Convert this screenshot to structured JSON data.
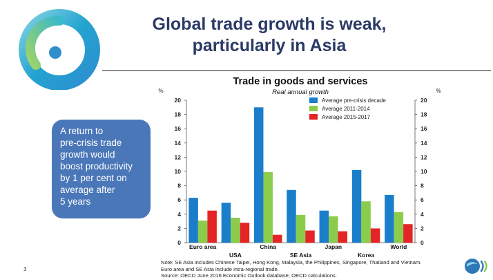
{
  "slide": {
    "title_line1": "Global trade growth is weak,",
    "title_line2": "particularly in Asia",
    "callout": [
      "A return to",
      "pre-crisis trade",
      "growth would",
      "boost productivity",
      "by 1 per cent on",
      "average after",
      "5 years"
    ],
    "note": [
      "Note: SE Asia includes Chinese Taipei, Hong Kong, Malaysia, the Philippines, Singapore, Thailand and Vietnam.",
      "Euro area and SE Asia include intra-regional trade.",
      "Source: OECD June 2016 Economic Outlook database; OECD calculations."
    ],
    "page_number": "3",
    "colors": {
      "title": "#2b3a66",
      "callout_bg": "#4a77b8"
    },
    "icons": {
      "logo": "swirl-logo-icon",
      "oecd": "oecd-logo-icon"
    }
  },
  "chart_data": {
    "type": "bar",
    "title": "Trade in goods and services",
    "subtitle": "Real annual growth",
    "ylabel_left": "%",
    "ylabel_right": "%",
    "ylim": [
      0,
      20
    ],
    "yticks": [
      0,
      2,
      4,
      6,
      8,
      10,
      12,
      14,
      16,
      18,
      20
    ],
    "grid": false,
    "legend_position": "top-right",
    "categories": [
      "Euro area",
      "USA",
      "China",
      "SE Asia",
      "Japan",
      "Korea",
      "World"
    ],
    "series": [
      {
        "name": "Average pre-crisis decade",
        "color": "#1a7ecb",
        "values": [
          6.3,
          5.6,
          19.0,
          7.4,
          4.5,
          10.2,
          6.7
        ]
      },
      {
        "name": "Average 2011-2014",
        "color": "#8ccc4c",
        "values": [
          3.1,
          3.5,
          9.9,
          3.9,
          3.7,
          5.8,
          4.3
        ]
      },
      {
        "name": "Average 2015-2017",
        "color": "#e32528",
        "values": [
          4.5,
          2.8,
          1.1,
          1.7,
          1.6,
          2.0,
          2.6
        ]
      }
    ]
  }
}
